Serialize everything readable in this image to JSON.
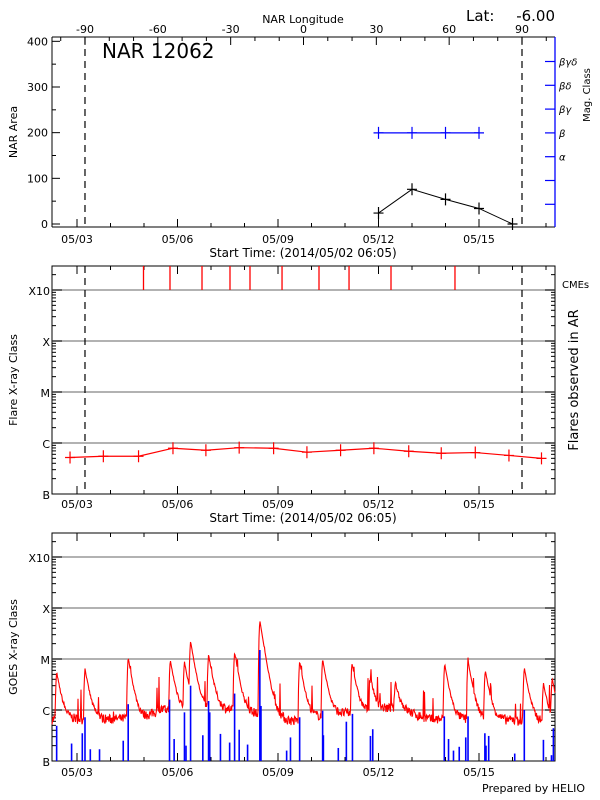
{
  "header": {
    "lat_label": "Lat:",
    "lat_value": "-6.00"
  },
  "colors": {
    "area": "#000000",
    "mag_class": "#0000ff",
    "flare": "#ff0000",
    "cme": "#ff0000",
    "goes_long": "#ff0000",
    "goes_short": "#0000ff",
    "grid": "#999999"
  },
  "chart_data": [
    {
      "type": "line",
      "title": "NAR 12062",
      "x_range": [
        "2014-05-02 06:05",
        "2014-05-17 06:30"
      ],
      "x_tick_labels": [
        "05/03",
        "05/06",
        "05/09",
        "05/12",
        "05/15"
      ],
      "x_tick_dates": [
        "2014-05-03 00:00",
        "2014-05-06 00:00",
        "2014-05-09 00:00",
        "2014-05-12 00:00",
        "2014-05-15 00:00"
      ],
      "xlabel": "Start Time: (2014/05/02 06:05)",
      "top_axis": {
        "label": "NAR Longitude",
        "ticks": [
          -90,
          -60,
          -30,
          0,
          30,
          60,
          90
        ]
      },
      "ylabel": "NAR Area",
      "ylim": [
        0,
        400
      ],
      "y_ticks": [
        0,
        100,
        200,
        300,
        400
      ],
      "y2label": "Mag. Class",
      "y2_categories": [
        "",
        "",
        "α",
        "β",
        "βγ",
        "βδ",
        "βγδ"
      ],
      "limb_markers": [
        "2014-05-03 05:43",
        "2014-05-16 06:48"
      ],
      "series": [
        {
          "axis": "area",
          "x": [
            "2014-05-12 00:00",
            "2014-05-13 00:00",
            "2014-05-14 00:00",
            "2014-05-15 00:00",
            "2014-05-16 00:00"
          ],
          "y": [
            24,
            76,
            54,
            34,
            0
          ]
        },
        {
          "axis": "mag_class",
          "x": [
            "2014-05-12 00:00",
            "2014-05-13 00:00",
            "2014-05-14 00:00",
            "2014-05-15 00:00"
          ],
          "y": [
            "β",
            "β",
            "β",
            "β"
          ]
        }
      ]
    },
    {
      "type": "line",
      "x_tick_labels": [
        "05/03",
        "05/06",
        "05/09",
        "05/12",
        "05/15"
      ],
      "xlabel": "Start Time: (2014/05/02 06:05)",
      "ylabel": "Flare X-ray Class",
      "y2label": "Flares observed in AR",
      "y_scale": "log",
      "y_classes": [
        "B",
        "C",
        "M",
        "X",
        "X10"
      ],
      "y_class_flux": [
        1e-07,
        1e-06,
        1e-05,
        0.0001,
        0.001
      ],
      "grid": true,
      "limb_markers": [
        "2014-05-03 05:43",
        "2014-05-16 06:48"
      ],
      "cme_label": "CMEs",
      "cmes": [
        "2014-05-04 23:38",
        "2014-05-05 18:37",
        "2014-05-06 17:33",
        "2014-05-07 13:36",
        "2014-05-08 03:56",
        "2014-05-09 02:53",
        "2014-05-10 05:22",
        "2014-05-11 02:53",
        "2014-05-12 08:57",
        "2014-05-14 06:47"
      ],
      "series": [
        {
          "x": [
            "2014-05-02 19:00",
            "2014-05-03 18:52",
            "2014-05-04 20:05",
            "2014-05-05 20:45",
            "2014-05-06 20:20",
            "2014-05-07 20:11",
            "2014-05-08 20:51",
            "2014-05-09 20:43",
            "2014-05-10 20:50",
            "2014-05-11 20:41",
            "2014-05-12 21:39",
            "2014-05-13 20:57",
            "2014-05-14 21:20",
            "2014-05-15 21:27",
            "2014-05-16 20:46"
          ],
          "y": [
            5.2e-07,
            5.5e-07,
            5.5e-07,
            7.9e-07,
            7.2e-07,
            8.1e-07,
            7.9e-07,
            6.6e-07,
            7.2e-07,
            7.9e-07,
            6.9e-07,
            6.3e-07,
            6.5e-07,
            5.7e-07,
            5e-07
          ]
        }
      ]
    },
    {
      "type": "line",
      "x_tick_labels": [
        "05/03",
        "05/06",
        "05/09",
        "05/12",
        "05/15"
      ],
      "ylabel": "GOES X-ray Class",
      "y_scale": "log",
      "y_classes": [
        "B",
        "C",
        "M",
        "X",
        "X10"
      ],
      "y_class_flux": [
        1e-07,
        1e-06,
        1e-05,
        0.0001,
        0.001
      ],
      "grid": true,
      "long_channel": {
        "background": [
          [
            "2014-05-02 06:05",
            6.5e-07
          ],
          [
            "2014-05-04 00:00",
            6.5e-07
          ],
          [
            "2014-05-05 00:00",
            7e-07
          ],
          [
            "2014-05-05 12:00",
            1e-06
          ],
          [
            "2014-05-07 12:00",
            1e-06
          ],
          [
            "2014-05-08 12:00",
            8e-07
          ],
          [
            "2014-05-09 12:00",
            6e-07
          ],
          [
            "2014-05-10 12:00",
            8e-07
          ],
          [
            "2014-05-11 12:00",
            9e-07
          ],
          [
            "2014-05-12 12:00",
            1.1e-06
          ],
          [
            "2014-05-13 12:00",
            6.5e-07
          ],
          [
            "2014-05-15 12:00",
            6.5e-07
          ],
          [
            "2014-05-17 06:30",
            5.5e-07
          ]
        ],
        "peaks": [
          [
            "2014-05-02 09:25",
            4.9e-06
          ],
          [
            "2014-05-03 05:43",
            5.8e-06
          ],
          [
            "2014-05-04 12:40",
            1e-05
          ],
          [
            "2014-05-05 18:50",
            8.4e-06
          ],
          [
            "2014-05-06 04:59",
            7.6e-06
          ],
          [
            "2014-05-06 09:22",
            2e-05
          ],
          [
            "2014-05-06 22:15",
            1.1e-05
          ],
          [
            "2014-05-07 16:54",
            1.25e-05
          ],
          [
            "2014-05-08 10:59",
            5.6e-05
          ],
          [
            "2014-05-09 15:30",
            8.4e-06
          ],
          [
            "2014-05-10 07:58",
            9.1e-06
          ],
          [
            "2014-05-11 05:04",
            7.4e-06
          ],
          [
            "2014-05-11 18:13",
            3.4e-06
          ],
          [
            "2014-05-12 12:03",
            2.4e-06
          ],
          [
            "2014-05-13 23:24",
            7.4e-06
          ],
          [
            "2014-05-14 16:08",
            8.6e-06
          ],
          [
            "2014-05-15 04:29",
            5.3e-06
          ],
          [
            "2014-05-16 08:27",
            6.2e-06
          ],
          [
            "2014-05-16 22:09",
            2.7e-06
          ],
          [
            "2014-05-17 04:26",
            3.5e-06
          ]
        ]
      },
      "short_channel_spikes": [
        [
          "2014-05-02 09:25",
          4.9e-07
        ],
        [
          "2014-05-02 20:07",
          2.2e-07
        ],
        [
          "2014-05-03 03:47",
          3.5e-07
        ],
        [
          "2014-05-03 05:43",
          7.2e-07
        ],
        [
          "2014-05-03 09:32",
          1.7e-07
        ],
        [
          "2014-05-03 16:08",
          1.7e-07
        ],
        [
          "2014-05-04 09:07",
          2.5e-07
        ],
        [
          "2014-05-04 12:40",
          1.3e-06
        ],
        [
          "2014-05-05 18:17",
          1.6e-06
        ],
        [
          "2014-05-05 21:35",
          2.7e-07
        ],
        [
          "2014-05-06 04:59",
          9e-07
        ],
        [
          "2014-05-06 06:05",
          2e-07
        ],
        [
          "2014-05-06 09:22",
          3e-06
        ],
        [
          "2014-05-06 18:08",
          3.2e-07
        ],
        [
          "2014-05-06 22:15",
          1.5e-06
        ],
        [
          "2014-05-06 23:05",
          9e-07
        ],
        [
          "2014-05-07 06:46",
          3.4e-07
        ],
        [
          "2014-05-07 13:21",
          2.3e-07
        ],
        [
          "2014-05-07 16:54",
          2.1e-06
        ],
        [
          "2014-05-07 20:11",
          4.1e-07
        ],
        [
          "2014-05-08 02:12",
          2.1e-07
        ],
        [
          "2014-05-08 10:59",
          1.5e-05
        ],
        [
          "2014-05-08 11:48",
          1.2e-06
        ],
        [
          "2014-05-09 06:11",
          1.6e-07
        ],
        [
          "2014-05-09 08:56",
          2.9e-07
        ],
        [
          "2014-05-09 15:30",
          7.2e-07
        ],
        [
          "2014-05-10 07:58",
          9.7e-07
        ],
        [
          "2014-05-10 08:31",
          3.2e-07
        ],
        [
          "2014-05-10 19:12",
          1.8e-07
        ],
        [
          "2014-05-11 00:58",
          5.9e-07
        ],
        [
          "2014-05-11 05:20",
          8.4e-07
        ],
        [
          "2014-05-11 18:13",
          3.1e-07
        ],
        [
          "2014-05-11 19:52",
          4.2e-07
        ],
        [
          "2014-05-13 23:08",
          7.5e-07
        ],
        [
          "2014-05-14 02:10",
          2.7e-07
        ],
        [
          "2014-05-14 05:43",
          1.6e-07
        ],
        [
          "2014-05-14 09:50",
          1.9e-07
        ],
        [
          "2014-05-14 14:30",
          2.9e-07
        ],
        [
          "2014-05-14 16:08",
          7.5e-07
        ],
        [
          "2014-05-15 04:12",
          3.5e-07
        ],
        [
          "2014-05-15 05:01",
          2e-07
        ],
        [
          "2014-05-15 06:56",
          3.1e-07
        ],
        [
          "2014-05-16 01:35",
          1.4e-07
        ],
        [
          "2014-05-16 08:27",
          1e-06
        ],
        [
          "2014-05-16 22:09",
          2.6e-07
        ],
        [
          "2014-05-17 03:55",
          1.3e-07
        ],
        [
          "2014-05-17 05:17",
          4.4e-07
        ]
      ]
    }
  ],
  "footer": {
    "credit": "Prepared by HELIO"
  }
}
